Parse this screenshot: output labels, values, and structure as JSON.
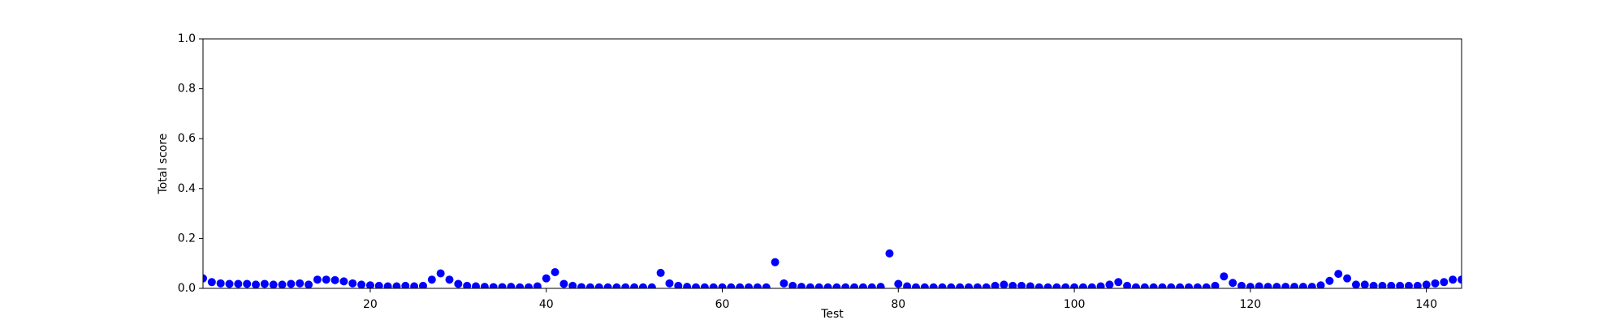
{
  "chart_data": {
    "type": "scatter",
    "xlabel": "Test",
    "ylabel": "Total score",
    "color": "blue",
    "x": [
      1,
      2,
      3,
      4,
      5,
      6,
      7,
      8,
      9,
      10,
      11,
      12,
      13,
      14,
      15,
      16,
      17,
      18,
      19,
      20,
      21,
      22,
      23,
      24,
      25,
      26,
      27,
      28,
      29,
      30,
      31,
      32,
      33,
      34,
      35,
      36,
      37,
      38,
      39,
      40,
      41,
      42,
      43,
      44,
      45,
      46,
      47,
      48,
      49,
      50,
      51,
      52,
      53,
      54,
      55,
      56,
      57,
      58,
      59,
      60,
      61,
      62,
      63,
      64,
      65,
      66,
      67,
      68,
      69,
      70,
      71,
      72,
      73,
      74,
      75,
      76,
      77,
      78,
      79,
      80,
      81,
      82,
      83,
      84,
      85,
      86,
      87,
      88,
      89,
      90,
      91,
      92,
      93,
      94,
      95,
      96,
      97,
      98,
      99,
      100,
      101,
      102,
      103,
      104,
      105,
      106,
      107,
      108,
      109,
      110,
      111,
      112,
      113,
      114,
      115,
      116,
      117,
      118,
      119,
      120,
      121,
      122,
      123,
      124,
      125,
      126,
      127,
      128,
      129,
      130,
      131,
      132,
      133,
      134,
      135,
      136,
      137,
      138,
      139,
      140,
      141,
      142,
      143,
      144
    ],
    "values": [
      0.04,
      0.025,
      0.02,
      0.018,
      0.018,
      0.018,
      0.015,
      0.018,
      0.015,
      0.015,
      0.018,
      0.02,
      0.015,
      0.035,
      0.035,
      0.033,
      0.028,
      0.02,
      0.015,
      0.012,
      0.01,
      0.008,
      0.008,
      0.01,
      0.008,
      0.01,
      0.035,
      0.06,
      0.035,
      0.018,
      0.01,
      0.008,
      0.006,
      0.005,
      0.005,
      0.006,
      0.004,
      0.004,
      0.008,
      0.04,
      0.065,
      0.018,
      0.01,
      0.005,
      0.004,
      0.004,
      0.004,
      0.004,
      0.004,
      0.004,
      0.004,
      0.004,
      0.062,
      0.02,
      0.01,
      0.006,
      0.004,
      0.004,
      0.004,
      0.004,
      0.004,
      0.004,
      0.004,
      0.004,
      0.004,
      0.105,
      0.02,
      0.01,
      0.006,
      0.004,
      0.004,
      0.004,
      0.004,
      0.004,
      0.004,
      0.004,
      0.004,
      0.006,
      0.14,
      0.018,
      0.008,
      0.004,
      0.004,
      0.004,
      0.004,
      0.004,
      0.004,
      0.004,
      0.004,
      0.004,
      0.01,
      0.015,
      0.01,
      0.01,
      0.008,
      0.004,
      0.004,
      0.004,
      0.004,
      0.004,
      0.004,
      0.004,
      0.008,
      0.015,
      0.025,
      0.01,
      0.004,
      0.004,
      0.004,
      0.004,
      0.004,
      0.004,
      0.004,
      0.004,
      0.004,
      0.01,
      0.048,
      0.022,
      0.01,
      0.006,
      0.008,
      0.006,
      0.006,
      0.006,
      0.006,
      0.006,
      0.006,
      0.012,
      0.03,
      0.058,
      0.04,
      0.015,
      0.015,
      0.01,
      0.01,
      0.01,
      0.01,
      0.01,
      0.01,
      0.015,
      0.02,
      0.025,
      0.035,
      0.035
    ],
    "xlim": [
      1,
      144
    ],
    "xticks": [
      20,
      40,
      60,
      80,
      100,
      120,
      140
    ],
    "ylim": [
      0,
      1
    ],
    "yticks": [
      {
        "value": 0,
        "label": "0.0"
      },
      {
        "value": 0.2,
        "label": "0.2"
      },
      {
        "value": 0.4,
        "label": "0.4"
      },
      {
        "value": 0.6,
        "label": "0.6"
      },
      {
        "value": 0.8,
        "label": "0.8"
      },
      {
        "value": 1,
        "label": "1.0"
      }
    ]
  }
}
